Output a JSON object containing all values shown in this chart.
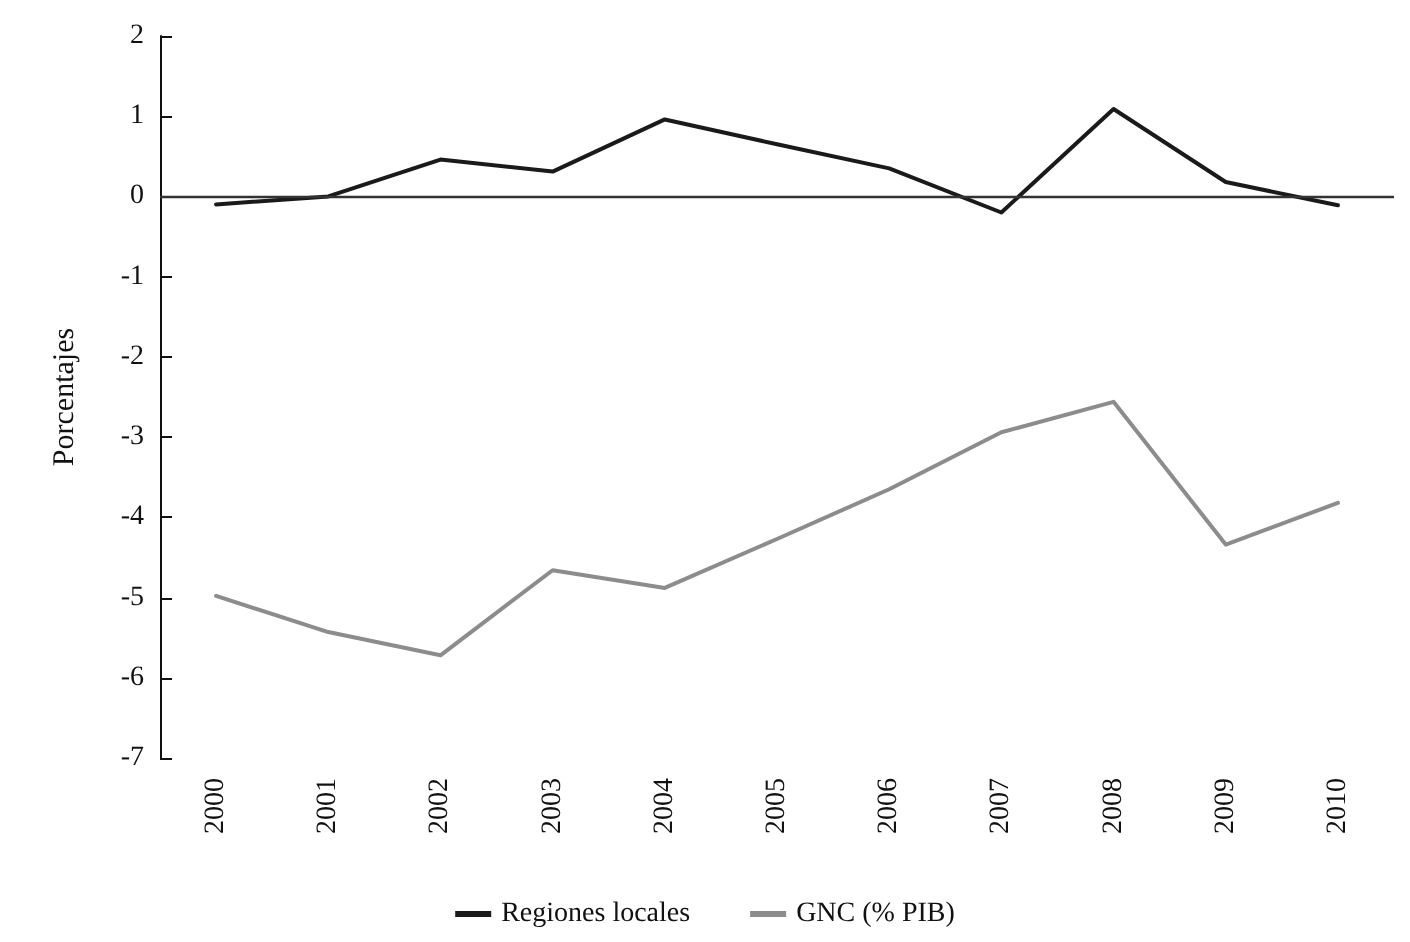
{
  "chart_data": {
    "type": "line",
    "ylabel": "Porcentajes",
    "categories": [
      "2000",
      "2001",
      "2002",
      "2003",
      "2004",
      "2005",
      "2006",
      "2007",
      "2008",
      "2009",
      "2010"
    ],
    "series": [
      {
        "name": "Regiones locales",
        "color": "#1a1a1a",
        "values": [
          -0.1,
          0,
          0.46,
          0.31,
          0.96,
          0.65,
          0.35,
          -0.2,
          1.09,
          0.18,
          -0.11
        ]
      },
      {
        "name": "GNC (% PIB)",
        "color": "#8c8c8c",
        "values": [
          -4.98,
          -5.43,
          -5.72,
          -4.66,
          -4.88,
          -4.27,
          -3.65,
          -2.94,
          -2.56,
          -4.34,
          -3.82
        ]
      }
    ],
    "ylim": [
      -7,
      2
    ],
    "yticks": [
      -7,
      -6,
      -5,
      -4,
      -3,
      -2,
      -1,
      0,
      1,
      2
    ],
    "ref_lines": [
      {
        "axis": "y",
        "value": 0,
        "color": "#333333"
      }
    ],
    "grid": false,
    "legend": "bottom",
    "marker": "none",
    "line_style": "solid"
  }
}
